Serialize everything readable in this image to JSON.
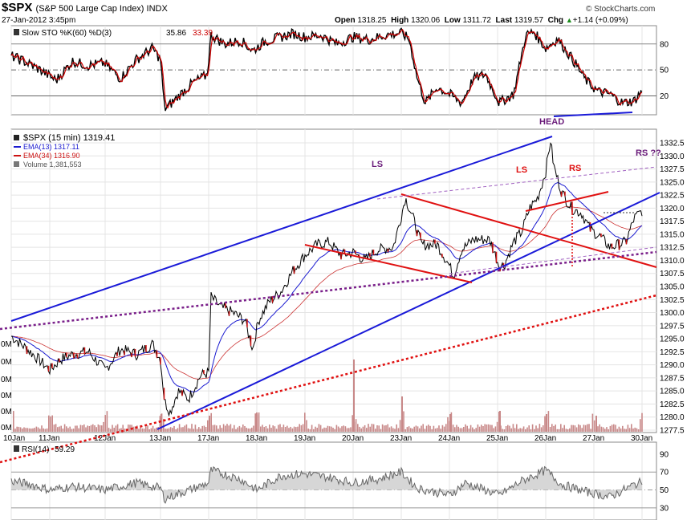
{
  "header": {
    "symbol": "$SPX",
    "name": "(S&P 500 Large Cap Index) INDX",
    "datetime": "27-Jan-2012 3:45pm",
    "open_label": "Open",
    "open": "1318.25",
    "high_label": "High",
    "high": "1320.06",
    "low_label": "Low",
    "low": "1311.72",
    "last_label": "Last",
    "last": "1319.57",
    "chg_label": "Chg",
    "chg": "+1.14 (+0.09%)",
    "chg_arrow": "▲",
    "copyright": "© StockCharts.com"
  },
  "sto_panel": {
    "legend_name": "Slow STO %K(60) %D(3)",
    "k_value": "35.86",
    "d_value": "33.39",
    "ticks": [
      "80",
      "50",
      "20"
    ]
  },
  "price_panel": {
    "legend": [
      {
        "text": "$SPX (15 min) 1319.41",
        "color": "#000000"
      },
      {
        "text": "EMA(13) 1317.11",
        "color": "#1a1ad0"
      },
      {
        "text": "EMA(34) 1316.90",
        "color": "#cc1111"
      },
      {
        "text": "Volume 1,381,553",
        "color": "#555555"
      }
    ],
    "price_ticks": [
      "1332.5",
      "1330.0",
      "1327.5",
      "1325.0",
      "1322.5",
      "1320.0",
      "1317.5",
      "1315.0",
      "1312.5",
      "1310.0",
      "1307.5",
      "1305.0",
      "1302.5",
      "1300.0",
      "1297.5",
      "1295.0",
      "1292.5",
      "1290.0",
      "1287.5",
      "1285.0",
      "1282.5",
      "1280.0",
      "1277.5"
    ],
    "volume_ticks": [
      "0M",
      "0M",
      "0M",
      "0M",
      "0M",
      "0M"
    ],
    "x_labels": [
      "10Jan",
      "11Jan",
      "12Jan",
      "13Jan",
      "17Jan",
      "18Jan",
      "19Jan",
      "20Jan",
      "23Jan",
      "24Jan",
      "25Jan",
      "26Jan",
      "27Jan",
      "30Jan"
    ],
    "annotations": {
      "head": "HEAD",
      "ls1": "LS",
      "ls2": "LS",
      "rs": "RS",
      "rs_q": "RS ??"
    }
  },
  "rsi_panel": {
    "legend_name": "RSI(14)",
    "value": "59.29",
    "ticks": [
      "90",
      "70",
      "50",
      "30"
    ]
  },
  "colors": {
    "price": "#000000",
    "ema13": "#1a1ad0",
    "ema34": "#cc3333",
    "sto_k": "#000000",
    "sto_d": "#cc0000",
    "volume": "#c88888",
    "trend_blue": "#1a1ad8",
    "trend_red": "#e01010",
    "trend_purple": "#7a1f8a",
    "rsi_fill": "#cccccc"
  },
  "chart_data": {
    "type": "line",
    "title": "$SPX (S&P 500 Large Cap Index) INDX",
    "x": [
      "10Jan",
      "11Jan",
      "12Jan",
      "13Jan",
      "17Jan",
      "18Jan",
      "19Jan",
      "20Jan",
      "23Jan",
      "24Jan",
      "25Jan",
      "26Jan",
      "27Jan"
    ],
    "series": [
      {
        "name": "$SPX (15 min)",
        "values": [
          1293.5,
          1289.5,
          1290.5,
          1283.0,
          1295.0,
          1292.0,
          1313.5,
          1312.0,
          1319.0,
          1313.0,
          1316.0,
          1326.0,
          1314.5
        ]
      },
      {
        "name": "EMA(13)",
        "values": [
          1294.0,
          1290.5,
          1291.5,
          1285.0,
          1294.0,
          1295.0,
          1310.0,
          1312.5,
          1317.0,
          1313.5,
          1316.5,
          1325.0,
          1316.0
        ]
      },
      {
        "name": "EMA(34)",
        "values": [
          1294.0,
          1291.5,
          1292.0,
          1288.0,
          1291.5,
          1294.5,
          1305.0,
          1310.5,
          1314.0,
          1313.5,
          1315.0,
          1321.0,
          1317.0
        ]
      }
    ],
    "ylim": [
      1277.5,
      1332.5
    ],
    "last_values": {
      "$SPX (15 min)": 1319.41,
      "EMA(13)": 1317.11,
      "EMA(34)": 1316.9
    },
    "volume_last": "1,381,553",
    "sto": {
      "k": 35.86,
      "d": 33.39,
      "ylim": [
        0,
        100
      ],
      "ticks": [
        80,
        50,
        20
      ]
    },
    "rsi": {
      "period": 14,
      "value": 59.29,
      "ylim": [
        20,
        100
      ],
      "ticks": [
        90,
        70,
        50,
        30
      ]
    },
    "grid": true
  }
}
